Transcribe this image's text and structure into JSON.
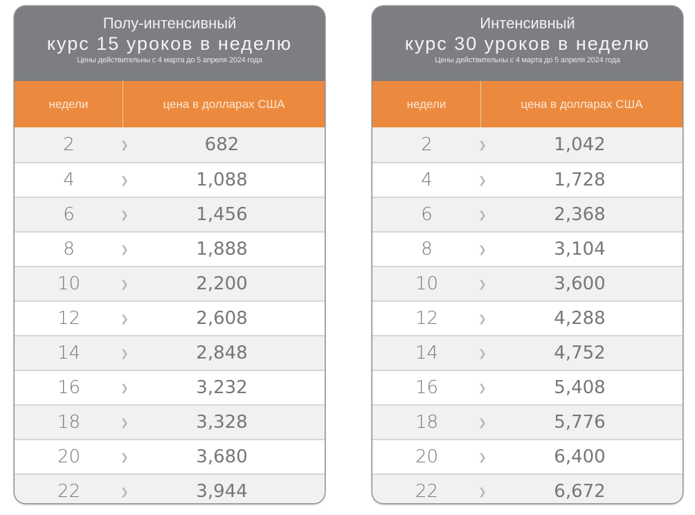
{
  "colors": {
    "header_bg": "#7c7e82",
    "column_header_bg": "#eb8a3e",
    "row_alt_bg": "#f1f1f1",
    "text_gray": "#777777"
  },
  "icons": {
    "row_separator": "chevron-right-icon"
  },
  "tables": [
    {
      "title_line1": "Полу-интенсивный",
      "title_line2": "курс 15 уроков в неделю",
      "validity_note": "Цены действительны с 4 марта до 5 апреля 2024 года",
      "columns": {
        "weeks": "недели",
        "price": "цена в долларах США"
      },
      "rows": [
        {
          "weeks": "2",
          "price": "682"
        },
        {
          "weeks": "4",
          "price": "1,088"
        },
        {
          "weeks": "6",
          "price": "1,456"
        },
        {
          "weeks": "8",
          "price": "1,888"
        },
        {
          "weeks": "10",
          "price": "2,200"
        },
        {
          "weeks": "12",
          "price": "2,608"
        },
        {
          "weeks": "14",
          "price": "2,848"
        },
        {
          "weeks": "16",
          "price": "3,232"
        },
        {
          "weeks": "18",
          "price": "3,328"
        },
        {
          "weeks": "20",
          "price": "3,680"
        },
        {
          "weeks": "22",
          "price": "3,944"
        }
      ]
    },
    {
      "title_line1": "Интенсивный",
      "title_line2": "курс 30 уроков в неделю",
      "validity_note": "Цены действительны с 4 марта до 5 апреля 2024 года",
      "columns": {
        "weeks": "недели",
        "price": "цена в долларах США"
      },
      "rows": [
        {
          "weeks": "2",
          "price": "1,042"
        },
        {
          "weeks": "4",
          "price": "1,728"
        },
        {
          "weeks": "6",
          "price": "2,368"
        },
        {
          "weeks": "8",
          "price": "3,104"
        },
        {
          "weeks": "10",
          "price": "3,600"
        },
        {
          "weeks": "12",
          "price": "4,288"
        },
        {
          "weeks": "14",
          "price": "4,752"
        },
        {
          "weeks": "16",
          "price": "5,408"
        },
        {
          "weeks": "18",
          "price": "5,776"
        },
        {
          "weeks": "20",
          "price": "6,400"
        },
        {
          "weeks": "22",
          "price": "6,672"
        }
      ]
    }
  ]
}
